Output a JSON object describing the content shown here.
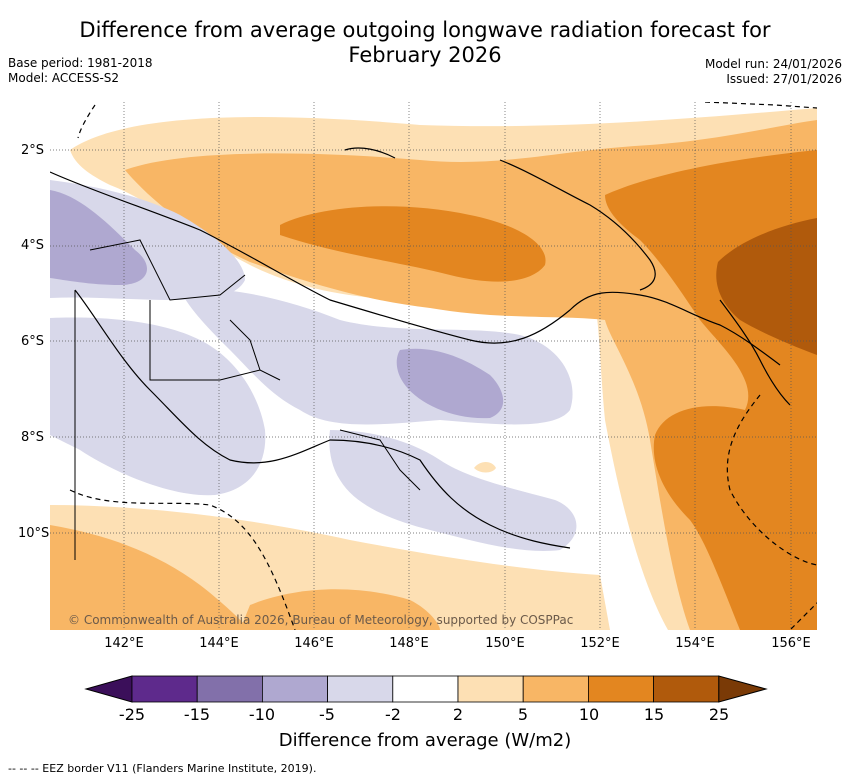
{
  "title_line1": "Difference from average outgoing longwave radiation forecast for",
  "title_line2": "February 2026",
  "base_period": "Base period: 1981-2018",
  "model": "Model: ACCESS-S2",
  "model_run": "Model run: 24/01/2026",
  "issued": "Issued: 27/01/2026",
  "x_ticks": [
    "142°E",
    "144°E",
    "146°E",
    "148°E",
    "150°E",
    "152°E",
    "154°E",
    "156°E"
  ],
  "y_ticks": [
    "2°S",
    "4°S",
    "6°S",
    "8°S",
    "10°S"
  ],
  "credit": "© Commonwealth of Australia 2026, Bureau of Meteorology, supported by COSPPac",
  "colorbar": {
    "labels": [
      "-25",
      "-15",
      "-10",
      "-5",
      "-2",
      "2",
      "5",
      "10",
      "15",
      "25"
    ],
    "colors": [
      "#3b0f5a",
      "#5e2a8c",
      "#8270aa",
      "#afa8d0",
      "#d8d8ea",
      "#ffffff",
      "#fde0b4",
      "#f8b665",
      "#e38620",
      "#b05a0c",
      "#7a3a06"
    ],
    "title": "Difference from average (W/m2)"
  },
  "footnote": "--  --  -- EEZ border V11 (Flanders Marine Institute, 2019)."
}
